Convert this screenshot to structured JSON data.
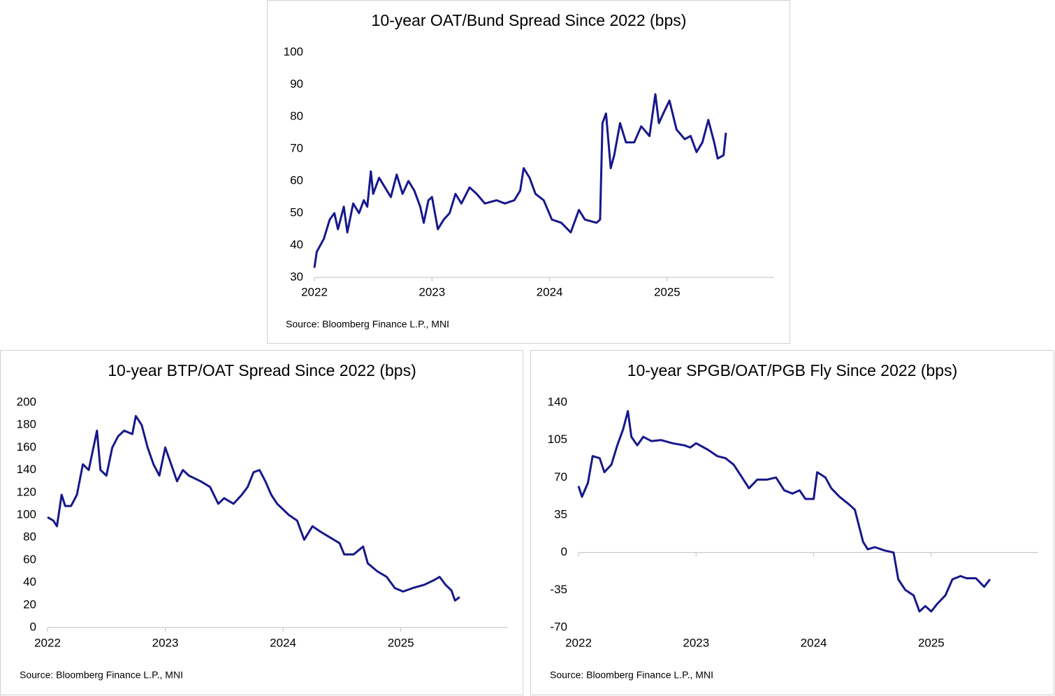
{
  "chart_data": [
    {
      "type": "line",
      "title": "10-year OAT/Bund Spread Since 2022 (bps)",
      "source": "Source: Bloomberg Finance L.P., MNI",
      "xlim": [
        2022,
        2025.91
      ],
      "xticks": [
        2022,
        2023,
        2024,
        2025
      ],
      "ylim": [
        30,
        100
      ],
      "yticks": [
        30,
        40,
        50,
        60,
        70,
        80,
        90,
        100
      ],
      "series": [
        {
          "color": "#17178c",
          "x": [
            2022.0,
            2022.02,
            2022.08,
            2022.13,
            2022.17,
            2022.2,
            2022.25,
            2022.28,
            2022.33,
            2022.38,
            2022.42,
            2022.45,
            2022.48,
            2022.5,
            2022.55,
            2022.6,
            2022.65,
            2022.7,
            2022.75,
            2022.8,
            2022.85,
            2022.9,
            2022.93,
            2022.97,
            2023.0,
            2023.05,
            2023.1,
            2023.15,
            2023.2,
            2023.25,
            2023.32,
            2023.38,
            2023.45,
            2023.55,
            2023.62,
            2023.7,
            2023.75,
            2023.78,
            2023.83,
            2023.88,
            2023.95,
            2024.02,
            2024.1,
            2024.18,
            2024.25,
            2024.3,
            2024.4,
            2024.43,
            2024.45,
            2024.48,
            2024.52,
            2024.55,
            2024.6,
            2024.65,
            2024.72,
            2024.78,
            2024.85,
            2024.9,
            2024.93,
            2024.98,
            2025.02,
            2025.08,
            2025.15,
            2025.2,
            2025.25,
            2025.3,
            2025.35,
            2025.4,
            2025.43,
            2025.48,
            2025.5
          ],
          "values": [
            33,
            38,
            42,
            48,
            50,
            45,
            52,
            44,
            53,
            50,
            54,
            52,
            63,
            56,
            61,
            58,
            55,
            62,
            56,
            60,
            57,
            52,
            47,
            54,
            55,
            45,
            48,
            50,
            56,
            53,
            58,
            56,
            53,
            54,
            53,
            54,
            57,
            64,
            61,
            56,
            54,
            48,
            47,
            44,
            51,
            48,
            47,
            48,
            78,
            81,
            64,
            68,
            78,
            72,
            72,
            77,
            74,
            87,
            78,
            82,
            85,
            76,
            73,
            74,
            69,
            72,
            79,
            72,
            67,
            68,
            75
          ]
        }
      ]
    },
    {
      "type": "line",
      "title": "10-year BTP/OAT Spread Since 2022 (bps)",
      "source": "Source: Bloomberg Finance L.P., MNI",
      "xlim": [
        2022,
        2025.91
      ],
      "xticks": [
        2022,
        2023,
        2024,
        2025
      ],
      "ylim": [
        0,
        200
      ],
      "yticks": [
        0,
        20,
        40,
        60,
        80,
        100,
        120,
        140,
        160,
        180,
        200
      ],
      "series": [
        {
          "color": "#17178c",
          "x": [
            2022.0,
            2022.05,
            2022.08,
            2022.12,
            2022.15,
            2022.2,
            2022.25,
            2022.3,
            2022.35,
            2022.42,
            2022.45,
            2022.5,
            2022.55,
            2022.6,
            2022.65,
            2022.72,
            2022.75,
            2022.8,
            2022.85,
            2022.9,
            2022.95,
            2023.0,
            2023.05,
            2023.1,
            2023.15,
            2023.2,
            2023.3,
            2023.38,
            2023.45,
            2023.5,
            2023.58,
            2023.65,
            2023.7,
            2023.75,
            2023.8,
            2023.85,
            2023.9,
            2023.95,
            2024.05,
            2024.12,
            2024.18,
            2024.25,
            2024.32,
            2024.4,
            2024.48,
            2024.52,
            2024.6,
            2024.68,
            2024.72,
            2024.8,
            2024.88,
            2024.95,
            2025.02,
            2025.1,
            2025.2,
            2025.28,
            2025.33,
            2025.38,
            2025.43,
            2025.46,
            2025.5
          ],
          "values": [
            98,
            95,
            90,
            118,
            108,
            108,
            118,
            145,
            140,
            175,
            140,
            135,
            160,
            170,
            175,
            172,
            188,
            180,
            160,
            145,
            135,
            160,
            145,
            130,
            140,
            135,
            130,
            125,
            110,
            115,
            110,
            118,
            125,
            138,
            140,
            130,
            118,
            110,
            100,
            95,
            78,
            90,
            85,
            80,
            75,
            65,
            65,
            72,
            57,
            50,
            45,
            35,
            32,
            35,
            38,
            42,
            45,
            38,
            33,
            24,
            27
          ]
        }
      ]
    },
    {
      "type": "line",
      "title": "10-year SPGB/OAT/PGB Fly Since 2022 (bps)",
      "source": "Source: Bloomberg Finance L.P., MNI",
      "xlim": [
        2022,
        2025.91
      ],
      "xticks": [
        2022,
        2023,
        2024,
        2025
      ],
      "ylim": [
        -70,
        140
      ],
      "yticks": [
        -70,
        -35,
        0,
        35,
        70,
        105,
        140
      ],
      "series": [
        {
          "color": "#17178c",
          "x": [
            2022.0,
            2022.03,
            2022.08,
            2022.12,
            2022.18,
            2022.22,
            2022.28,
            2022.33,
            2022.38,
            2022.42,
            2022.45,
            2022.5,
            2022.55,
            2022.62,
            2022.7,
            2022.8,
            2022.9,
            2022.95,
            2023.0,
            2023.1,
            2023.18,
            2023.25,
            2023.32,
            2023.38,
            2023.45,
            2023.52,
            2023.6,
            2023.68,
            2023.75,
            2023.82,
            2023.88,
            2023.93,
            2024.0,
            2024.03,
            2024.1,
            2024.15,
            2024.22,
            2024.3,
            2024.35,
            2024.42,
            2024.46,
            2024.52,
            2024.6,
            2024.68,
            2024.72,
            2024.78,
            2024.85,
            2024.9,
            2024.95,
            2025.0,
            2025.05,
            2025.12,
            2025.18,
            2025.25,
            2025.3,
            2025.38,
            2025.45,
            2025.5
          ],
          "values": [
            62,
            52,
            65,
            90,
            88,
            75,
            82,
            100,
            115,
            132,
            108,
            100,
            108,
            104,
            105,
            102,
            100,
            98,
            102,
            96,
            90,
            88,
            82,
            72,
            60,
            68,
            68,
            70,
            58,
            55,
            58,
            50,
            50,
            75,
            70,
            60,
            52,
            45,
            40,
            10,
            3,
            5,
            2,
            0,
            -25,
            -35,
            -40,
            -55,
            -50,
            -55,
            -48,
            -40,
            -25,
            -22,
            -24,
            -24,
            -32,
            -25
          ]
        }
      ]
    }
  ]
}
